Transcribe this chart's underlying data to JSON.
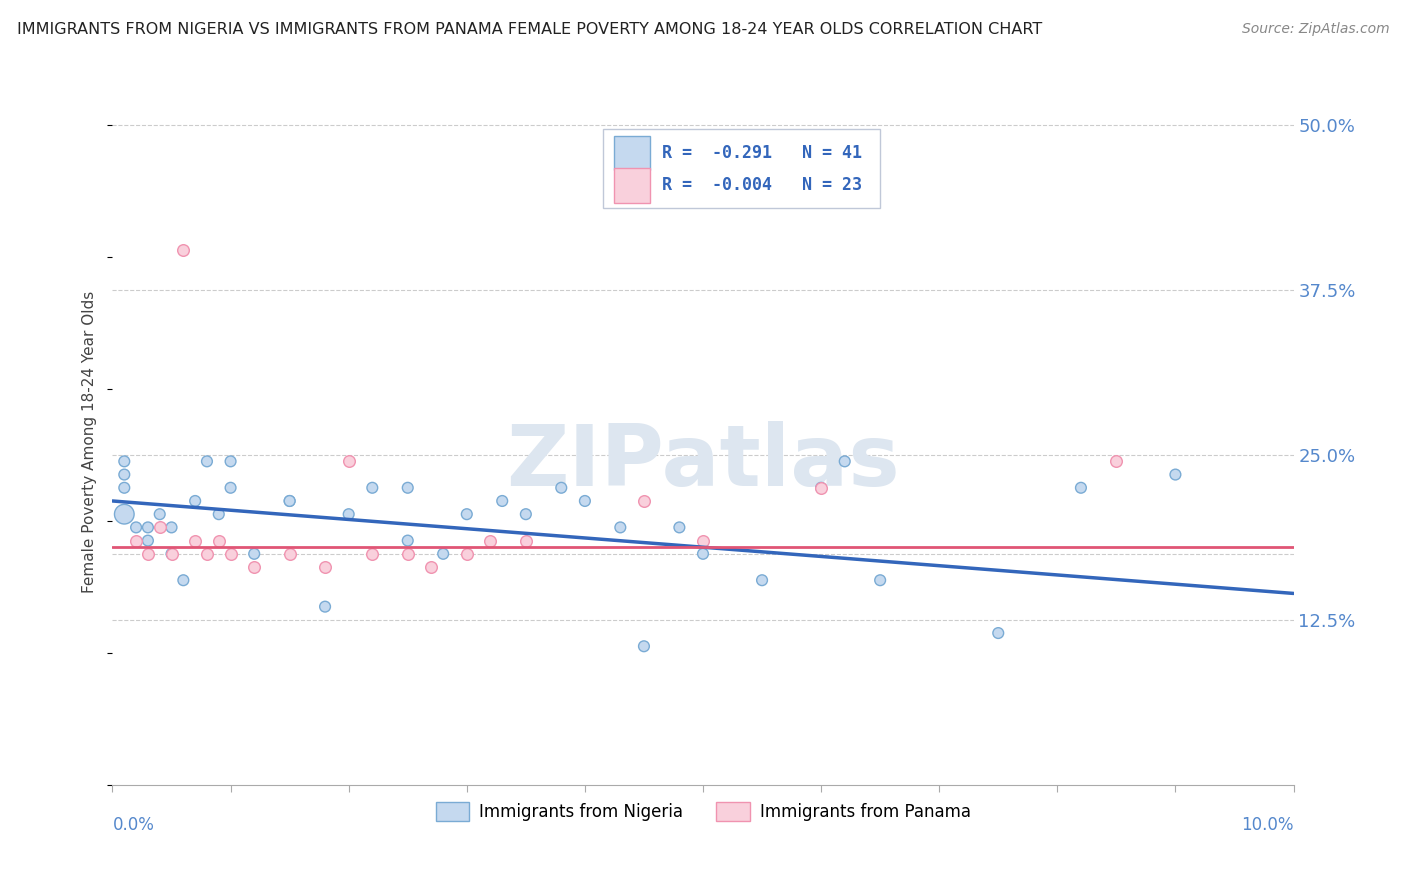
{
  "title": "IMMIGRANTS FROM NIGERIA VS IMMIGRANTS FROM PANAMA FEMALE POVERTY AMONG 18-24 YEAR OLDS CORRELATION CHART",
  "source": "Source: ZipAtlas.com",
  "ylabel": "Female Poverty Among 18-24 Year Olds",
  "xlim": [
    0.0,
    0.1
  ],
  "ylim": [
    0.0,
    0.52
  ],
  "r_nigeria": -0.291,
  "n_nigeria": 41,
  "r_panama": -0.004,
  "n_panama": 23,
  "color_nigeria_fill": "#c5d9ef",
  "color_nigeria_edge": "#7aabd4",
  "color_panama_fill": "#f9d0dc",
  "color_panama_edge": "#f093b0",
  "line_color_nigeria": "#3366bb",
  "line_color_panama": "#e05575",
  "watermark_color": "#dde6f0",
  "nigeria_x": [
    0.001,
    0.001,
    0.001,
    0.001,
    0.002,
    0.003,
    0.003,
    0.004,
    0.005,
    0.005,
    0.006,
    0.007,
    0.008,
    0.009,
    0.01,
    0.01,
    0.012,
    0.015,
    0.015,
    0.018,
    0.02,
    0.022,
    0.025,
    0.025,
    0.028,
    0.03,
    0.033,
    0.035,
    0.038,
    0.04,
    0.043,
    0.045,
    0.048,
    0.05,
    0.055,
    0.06,
    0.062,
    0.065,
    0.075,
    0.082,
    0.09
  ],
  "nigeria_y": [
    0.245,
    0.235,
    0.225,
    0.205,
    0.195,
    0.195,
    0.185,
    0.205,
    0.195,
    0.175,
    0.155,
    0.215,
    0.245,
    0.205,
    0.245,
    0.225,
    0.175,
    0.215,
    0.215,
    0.135,
    0.205,
    0.225,
    0.185,
    0.225,
    0.175,
    0.205,
    0.215,
    0.205,
    0.225,
    0.215,
    0.195,
    0.105,
    0.195,
    0.175,
    0.155,
    0.225,
    0.245,
    0.155,
    0.115,
    0.225,
    0.235
  ],
  "nigeria_size": [
    60,
    60,
    60,
    200,
    60,
    60,
    60,
    60,
    60,
    60,
    60,
    60,
    60,
    60,
    60,
    60,
    60,
    60,
    60,
    60,
    60,
    60,
    60,
    60,
    60,
    60,
    60,
    60,
    60,
    60,
    60,
    60,
    60,
    60,
    60,
    60,
    60,
    60,
    60,
    60,
    60
  ],
  "panama_x": [
    0.002,
    0.003,
    0.004,
    0.005,
    0.006,
    0.007,
    0.008,
    0.009,
    0.01,
    0.012,
    0.015,
    0.018,
    0.02,
    0.022,
    0.025,
    0.027,
    0.03,
    0.032,
    0.035,
    0.045,
    0.05,
    0.06,
    0.085
  ],
  "panama_y": [
    0.185,
    0.175,
    0.195,
    0.175,
    0.405,
    0.185,
    0.175,
    0.185,
    0.175,
    0.165,
    0.175,
    0.165,
    0.245,
    0.175,
    0.175,
    0.165,
    0.175,
    0.185,
    0.185,
    0.215,
    0.185,
    0.225,
    0.245
  ],
  "ng_line_x0": 0.0,
  "ng_line_y0": 0.215,
  "ng_line_x1": 0.1,
  "ng_line_y1": 0.145,
  "pa_line_x0": 0.0,
  "pa_line_y0": 0.18,
  "pa_line_x1": 0.1,
  "pa_line_y1": 0.18
}
